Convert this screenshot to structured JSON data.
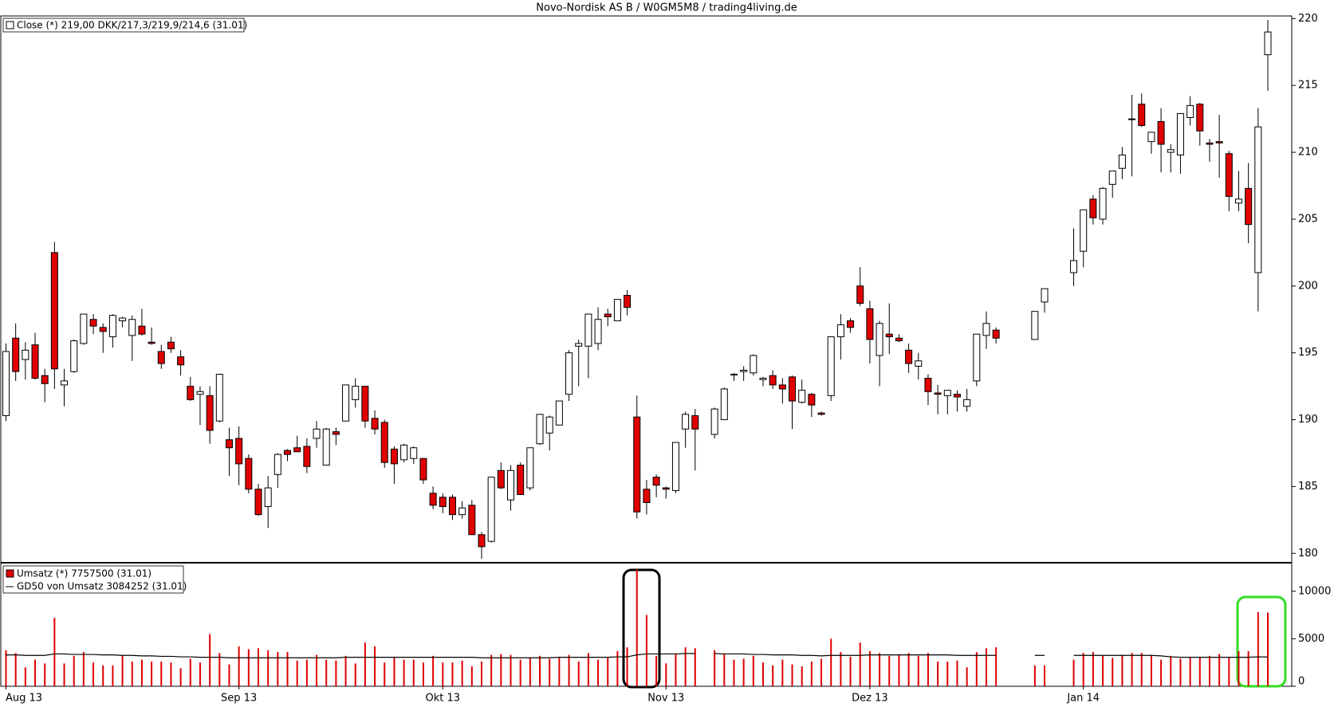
{
  "chart_data": [
    {
      "type": "candlestick",
      "title": "Novo-Nordisk AS B / W0GM5M8 / trading4living.de",
      "series_name": "Close (*) 219,00 DKK/217,3/219,9/214,6 (31.01)",
      "up_color": "#ffffff",
      "down_color": "#e00000",
      "ylim": [
        179.3,
        220.2
      ],
      "yticks": [
        180,
        185,
        190,
        195,
        200,
        205,
        210,
        215,
        220
      ],
      "open": [
        190.3,
        196.1,
        194.5,
        195.6,
        193.3,
        202.5,
        192.6,
        193.6,
        195.7,
        197.5,
        196.9,
        196.2,
        197.4,
        196.3,
        197.0,
        195.8,
        195.1,
        195.8,
        194.7,
        192.5,
        191.9,
        191.8,
        189.9,
        188.5,
        188.6,
        187.1,
        184.8,
        183.5,
        185.9,
        187.7,
        187.9,
        188.0,
        188.6,
        186.6,
        189.1,
        189.9,
        191.5,
        192.5,
        190.1,
        189.8,
        187.8,
        187.0,
        187.1,
        187.1,
        184.5,
        184.2,
        184.2,
        182.9,
        183.6,
        181.4,
        180.9,
        186.2,
        184.0,
        186.6,
        184.9,
        188.2,
        189.0,
        189.6,
        191.9,
        195.5,
        195.5,
        195.7,
        197.9,
        197.4,
        199.3,
        190.2,
        184.8,
        185.7,
        184.9,
        184.7,
        189.3,
        190.3,
        null,
        188.9,
        190.0,
        193.4,
        193.6,
        193.5,
        193.0,
        193.3,
        192.6,
        193.2,
        191.3,
        191.9,
        190.5,
        191.8,
        196.2,
        197.4,
        200.0,
        198.3,
        194.8,
        196.4,
        196.1,
        195.2,
        194.0,
        193.1,
        192.0,
        191.8,
        191.9,
        191.0,
        192.9,
        196.3,
        196.7,
        null,
        null,
        null,
        196.0,
        198.8,
        null,
        null,
        201.0,
        202.6,
        206.5,
        205.0,
        207.6,
        208.8,
        212.5,
        213.6,
        210.8,
        212.3,
        210.0,
        209.8,
        212.6,
        213.6,
        210.7,
        210.8,
        209.9,
        206.2,
        207.3,
        201.0,
        217.3
      ],
      "high": [
        195.7,
        197.2,
        195.8,
        196.5,
        193.8,
        203.3,
        193.8,
        196.0,
        197.9,
        197.9,
        197.2,
        197.9,
        197.7,
        197.8,
        198.3,
        196.9,
        195.6,
        196.2,
        195.2,
        193.2,
        192.5,
        192.5,
        193.4,
        189.4,
        189.5,
        187.4,
        185.2,
        185.8,
        187.5,
        187.8,
        188.8,
        188.6,
        189.9,
        189.4,
        189.4,
        192.6,
        193.1,
        192.5,
        190.7,
        190.0,
        188.0,
        188.2,
        188.0,
        187.1,
        185.0,
        184.5,
        184.4,
        183.9,
        184.0,
        181.6,
        185.7,
        186.8,
        186.6,
        186.8,
        187.9,
        190.4,
        190.3,
        191.4,
        195.2,
        196.0,
        197.9,
        198.4,
        198.3,
        199.0,
        199.7,
        191.8,
        185.5,
        185.9,
        185.0,
        188.3,
        190.6,
        190.8,
        null,
        190.9,
        192.4,
        193.5,
        194.0,
        194.9,
        193.2,
        193.7,
        193.1,
        193.3,
        193.0,
        192.0,
        190.6,
        196.2,
        197.9,
        197.6,
        201.4,
        198.9,
        197.4,
        198.7,
        196.4,
        195.7,
        195.0,
        193.4,
        192.6,
        192.1,
        192.2,
        192.3,
        196.4,
        198.1,
        196.9,
        null,
        null,
        null,
        197.9,
        199.8,
        null,
        null,
        204.3,
        205.7,
        206.8,
        207.4,
        208.6,
        210.4,
        214.3,
        214.4,
        211.5,
        213.3,
        210.6,
        212.9,
        214.2,
        213.7,
        211.0,
        212.8,
        210.1,
        208.6,
        209.2,
        213.3,
        219.9
      ],
      "low": [
        189.9,
        192.9,
        193.0,
        193.0,
        191.3,
        192.3,
        191.0,
        193.5,
        195.6,
        196.4,
        195.0,
        195.4,
        196.9,
        194.4,
        196.3,
        195.6,
        193.8,
        195.0,
        193.3,
        191.4,
        189.6,
        188.2,
        189.8,
        185.8,
        185.1,
        184.5,
        182.8,
        181.9,
        184.9,
        186.9,
        187.6,
        186.0,
        187.9,
        186.6,
        188.1,
        189.9,
        190.9,
        189.4,
        188.9,
        186.4,
        185.2,
        186.8,
        186.7,
        185.2,
        183.3,
        183.0,
        182.5,
        182.6,
        181.4,
        179.6,
        180.8,
        184.8,
        183.2,
        184.4,
        184.7,
        188.1,
        187.7,
        189.6,
        191.4,
        192.5,
        193.1,
        195.2,
        197.0,
        197.4,
        197.8,
        182.6,
        182.9,
        184.2,
        184.1,
        184.5,
        187.9,
        186.2,
        null,
        188.6,
        190.0,
        192.9,
        192.9,
        193.3,
        192.5,
        192.3,
        191.2,
        189.3,
        191.2,
        190.2,
        190.3,
        191.4,
        194.5,
        196.5,
        198.5,
        194.2,
        192.5,
        194.9,
        195.8,
        193.5,
        193.0,
        191.1,
        190.4,
        190.4,
        190.6,
        190.6,
        192.5,
        195.3,
        195.7,
        null,
        null,
        null,
        196.0,
        198.0,
        null,
        null,
        200.0,
        201.4,
        204.6,
        204.6,
        206.6,
        208.0,
        208.2,
        211.9,
        209.9,
        208.5,
        208.5,
        208.4,
        212.0,
        210.5,
        209.3,
        208.1,
        205.6,
        205.6,
        203.2,
        198.1,
        214.6
      ],
      "close": [
        195.1,
        193.6,
        195.2,
        193.1,
        192.7,
        193.8,
        192.9,
        195.9,
        197.9,
        197.0,
        196.6,
        197.8,
        197.6,
        197.5,
        196.4,
        195.7,
        194.2,
        195.3,
        194.1,
        191.5,
        192.1,
        189.2,
        193.4,
        187.9,
        186.7,
        184.8,
        182.9,
        184.9,
        187.4,
        187.4,
        187.6,
        186.5,
        189.3,
        189.3,
        188.9,
        192.6,
        192.5,
        189.9,
        189.3,
        186.8,
        186.7,
        188.1,
        187.9,
        185.5,
        183.6,
        183.5,
        182.9,
        183.4,
        181.4,
        180.5,
        185.7,
        184.9,
        186.2,
        184.4,
        187.9,
        190.4,
        190.2,
        191.4,
        195.0,
        195.7,
        197.9,
        197.5,
        197.7,
        199.0,
        198.4,
        183.1,
        183.8,
        185.1,
        184.8,
        188.3,
        190.4,
        189.3,
        null,
        190.8,
        192.3,
        193.4,
        193.7,
        194.8,
        193.1,
        192.6,
        192.3,
        191.4,
        192.2,
        191.1,
        190.4,
        196.2,
        197.1,
        196.9,
        198.7,
        196.0,
        197.2,
        196.2,
        195.9,
        194.2,
        194.4,
        192.1,
        191.9,
        192.2,
        191.7,
        191.5,
        196.4,
        197.2,
        196.1,
        null,
        null,
        null,
        198.1,
        199.8,
        null,
        null,
        201.9,
        205.7,
        205.1,
        207.3,
        208.6,
        209.8,
        212.5,
        212.0,
        211.5,
        210.6,
        210.2,
        212.9,
        213.5,
        211.6,
        210.6,
        210.7,
        206.7,
        206.5,
        204.6,
        211.9,
        219.0
      ]
    },
    {
      "type": "bar",
      "ylim": [
        0,
        13000
      ],
      "yticks": [
        0,
        5000,
        10000
      ],
      "categories": [
        "Aug 13",
        null,
        null,
        null,
        null,
        null,
        null,
        null,
        null,
        null,
        null,
        null,
        null,
        null,
        null,
        null,
        null,
        null,
        null,
        null,
        null,
        null,
        null,
        null,
        "Sep 13",
        null,
        null,
        null,
        null,
        null,
        null,
        null,
        null,
        null,
        null,
        null,
        null,
        null,
        null,
        null,
        null,
        null,
        null,
        null,
        null,
        "Okt 13",
        null,
        null,
        null,
        null,
        null,
        null,
        null,
        null,
        null,
        null,
        null,
        null,
        null,
        null,
        null,
        null,
        null,
        null,
        null,
        null,
        null,
        null,
        "Nov 13",
        null,
        null,
        null,
        null,
        null,
        null,
        null,
        null,
        null,
        null,
        null,
        null,
        null,
        null,
        null,
        null,
        null,
        null,
        null,
        null,
        "Dez 13",
        null,
        null,
        null,
        null,
        null,
        null,
        null,
        null,
        null,
        null,
        null,
        null,
        null,
        null,
        null,
        null,
        null,
        null,
        null,
        null,
        null,
        "Jan 14",
        null,
        null,
        null,
        null,
        null,
        null,
        null,
        null,
        null,
        null,
        null,
        null,
        null,
        null,
        null,
        null,
        null,
        null,
        null
      ],
      "series": [
        {
          "name": "Umsatz (*) 7757500 (31.01)",
          "color": "#e00000",
          "type": "bar",
          "values": [
            3800,
            3500,
            2000,
            2800,
            2400,
            7200,
            2400,
            3200,
            3600,
            2500,
            2200,
            2200,
            3300,
            2600,
            2800,
            2600,
            2600,
            2500,
            1900,
            2900,
            2500,
            5500,
            3500,
            2300,
            4200,
            3900,
            4000,
            3800,
            3600,
            3600,
            2700,
            2800,
            3300,
            2800,
            2700,
            3200,
            2400,
            4600,
            4200,
            2500,
            3000,
            2800,
            2800,
            2500,
            3200,
            2500,
            2500,
            2700,
            2100,
            2600,
            3300,
            3400,
            3300,
            2800,
            3000,
            3200,
            2900,
            3000,
            3300,
            2600,
            3500,
            2800,
            3000,
            3700,
            4100,
            12300,
            7500,
            3200,
            2400,
            3400,
            4100,
            4000,
            null,
            3800,
            3400,
            2800,
            2900,
            3200,
            2500,
            2200,
            2800,
            2300,
            2100,
            2600,
            2900,
            5000,
            3600,
            3100,
            4600,
            3700,
            3500,
            3200,
            3300,
            3500,
            3200,
            3500,
            2600,
            2600,
            2700,
            2000,
            3600,
            4000,
            4100,
            null,
            null,
            null,
            2200,
            2200,
            null,
            null,
            2800,
            3500,
            3600,
            3200,
            3000,
            3300,
            3500,
            3500,
            3300,
            2800,
            3200,
            2900,
            3000,
            3000,
            3200,
            3400,
            3000,
            3700,
            3700,
            7800,
            7757.5
          ]
        },
        {
          "name": "GD50 von Umsatz 3084252 (31.01)",
          "color": "#000000",
          "type": "line",
          "values": [
            3300,
            3300,
            3250,
            3250,
            3250,
            3400,
            3400,
            3350,
            3350,
            3350,
            3300,
            3300,
            3250,
            3250,
            3200,
            3200,
            3150,
            3150,
            3100,
            3100,
            3050,
            3050,
            3050,
            3000,
            3000,
            3000,
            3000,
            3000,
            3000,
            3000,
            3000,
            3000,
            3000,
            3000,
            3000,
            3050,
            3050,
            3050,
            3050,
            3050,
            3050,
            3050,
            3050,
            3050,
            3050,
            3050,
            3050,
            3050,
            3050,
            3000,
            3000,
            3000,
            3000,
            3000,
            3000,
            3000,
            3000,
            3050,
            3050,
            3050,
            3050,
            3050,
            3050,
            3100,
            3100,
            3300,
            3400,
            3400,
            3400,
            3400,
            3450,
            3450,
            null,
            3450,
            3400,
            3400,
            3400,
            3350,
            3350,
            3300,
            3300,
            3300,
            3250,
            3250,
            3200,
            3250,
            3250,
            3250,
            3250,
            3300,
            3300,
            3300,
            3300,
            3300,
            3300,
            3300,
            3300,
            3300,
            3250,
            3250,
            3250,
            3250,
            3250,
            null,
            null,
            null,
            3250,
            3250,
            null,
            null,
            3250,
            3250,
            3250,
            3250,
            3250,
            3250,
            3250,
            3250,
            3250,
            3200,
            3100,
            3050,
            3050,
            3050,
            3050,
            3050,
            3050,
            3050,
            3050,
            3100,
            3084.252
          ]
        }
      ]
    }
  ]
}
